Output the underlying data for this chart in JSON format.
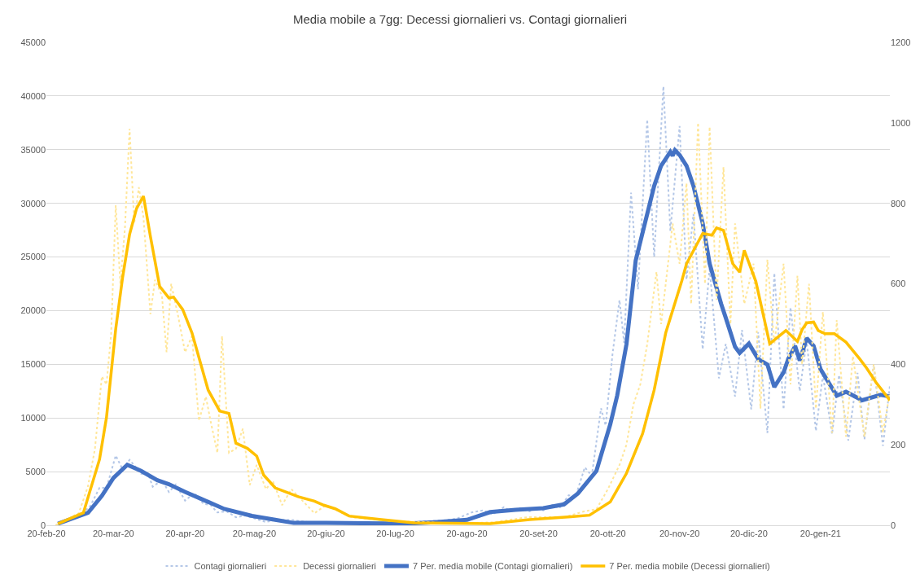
{
  "chart_data": {
    "type": "line",
    "title": "Media mobile a 7gg: Decessi giornalieri vs. Contagi giornalieri",
    "xlim": [
      "2020-02-20",
      "2021-02-19"
    ],
    "xticks": [
      {
        "value": "2020-02-20",
        "label": "20-feb-20"
      },
      {
        "value": "2020-03-20",
        "label": "20-mar-20"
      },
      {
        "value": "2020-04-20",
        "label": "20-apr-20"
      },
      {
        "value": "2020-05-20",
        "label": "20-mag-20"
      },
      {
        "value": "2020-06-20",
        "label": "20-giu-20"
      },
      {
        "value": "2020-07-20",
        "label": "20-lug-20"
      },
      {
        "value": "2020-08-20",
        "label": "20-ago-20"
      },
      {
        "value": "2020-09-20",
        "label": "20-set-20"
      },
      {
        "value": "2020-10-20",
        "label": "20-ott-20"
      },
      {
        "value": "2020-11-20",
        "label": "20-nov-20"
      },
      {
        "value": "2020-12-20",
        "label": "20-dic-20"
      },
      {
        "value": "2021-01-20",
        "label": "20-gen-21"
      }
    ],
    "ylim": [
      0,
      45000
    ],
    "yticks": [
      0,
      5000,
      10000,
      15000,
      20000,
      25000,
      30000,
      35000,
      40000,
      45000
    ],
    "y2lim": [
      0,
      1200
    ],
    "y2ticks": [
      0,
      200,
      400,
      600,
      800,
      1000,
      1200
    ],
    "grid": "y",
    "legend": "bottom",
    "marker": "none",
    "series": [
      {
        "name": "Contagi giornalieri",
        "color": "#b4c7e7",
        "line_style": "dotted",
        "x": [
          "2020-02-24",
          "2020-03-01",
          "2020-03-05",
          "2020-03-10",
          "2020-03-14",
          "2020-03-17",
          "2020-03-21",
          "2020-03-24",
          "2020-03-27",
          "2020-04-01",
          "2020-04-04",
          "2020-04-06",
          "2020-04-10",
          "2020-04-13",
          "2020-04-16",
          "2020-04-20",
          "2020-04-24",
          "2020-04-28",
          "2020-05-01",
          "2020-05-04",
          "2020-05-08",
          "2020-05-12",
          "2020-05-16",
          "2020-05-20",
          "2020-05-25",
          "2020-05-29",
          "2020-06-05",
          "2020-06-12",
          "2020-06-20",
          "2020-07-01",
          "2020-07-10",
          "2020-07-20",
          "2020-07-28",
          "2020-08-04",
          "2020-08-10",
          "2020-08-16",
          "2020-08-22",
          "2020-08-27",
          "2020-08-31",
          "2020-09-05",
          "2020-09-08",
          "2020-09-12",
          "2020-09-16",
          "2020-09-19",
          "2020-09-22",
          "2020-09-26",
          "2020-09-29",
          "2020-10-03",
          "2020-10-06",
          "2020-10-10",
          "2020-10-13",
          "2020-10-17",
          "2020-10-19",
          "2020-10-22",
          "2020-10-25",
          "2020-10-27",
          "2020-10-30",
          "2020-11-02",
          "2020-11-06",
          "2020-11-09",
          "2020-11-13",
          "2020-11-16",
          "2020-11-20",
          "2020-11-23",
          "2020-11-26",
          "2020-11-30",
          "2020-12-03",
          "2020-12-07",
          "2020-12-10",
          "2020-12-14",
          "2020-12-17",
          "2020-12-21",
          "2020-12-24",
          "2020-12-28",
          "2020-12-31",
          "2021-01-04",
          "2021-01-07",
          "2021-01-11",
          "2021-01-14",
          "2021-01-18",
          "2021-01-21",
          "2021-01-25",
          "2021-01-28",
          "2021-02-01",
          "2021-02-05",
          "2021-02-08",
          "2021-02-12",
          "2021-02-16",
          "2021-02-19"
        ],
        "values": [
          0,
          500,
          800,
          1800,
          3500,
          3500,
          6500,
          5200,
          6100,
          4800,
          4800,
          3600,
          4200,
          3100,
          3800,
          2300,
          3000,
          2000,
          1900,
          1200,
          1300,
          750,
          900,
          650,
          300,
          500,
          500,
          300,
          250,
          150,
          230,
          250,
          300,
          400,
          450,
          650,
          1200,
          1400,
          1000,
          1700,
          1300,
          1600,
          1300,
          1600,
          1400,
          1900,
          1600,
          2800,
          2700,
          5400,
          4600,
          10900,
          9300,
          16000,
          21000,
          17000,
          31000,
          22000,
          37800,
          25000,
          40900,
          27400,
          37200,
          22900,
          29000,
          16400,
          24000,
          13700,
          16900,
          12000,
          18200,
          10800,
          18000,
          8600,
          23500,
          10800,
          20300,
          12500,
          17200,
          8800,
          14000,
          8500,
          14000,
          7900,
          14200,
          8000,
          15000,
          7400,
          13000
        ]
      },
      {
        "name": "Decessi giornalieri",
        "color": "#ffe699",
        "line_style": "dotted",
        "axis": "y2",
        "x": [
          "2020-02-24",
          "2020-03-05",
          "2020-03-09",
          "2020-03-12",
          "2020-03-15",
          "2020-03-17",
          "2020-03-19",
          "2020-03-21",
          "2020-03-23",
          "2020-03-25",
          "2020-03-27",
          "2020-03-29",
          "2020-03-31",
          "2020-04-02",
          "2020-04-05",
          "2020-04-07",
          "2020-04-10",
          "2020-04-12",
          "2020-04-14",
          "2020-04-17",
          "2020-04-20",
          "2020-04-23",
          "2020-04-26",
          "2020-04-29",
          "2020-05-01",
          "2020-05-04",
          "2020-05-06",
          "2020-05-09",
          "2020-05-12",
          "2020-05-15",
          "2020-05-18",
          "2020-05-21",
          "2020-05-25",
          "2020-05-28",
          "2020-06-01",
          "2020-06-05",
          "2020-06-10",
          "2020-06-15",
          "2020-06-20",
          "2020-07-01",
          "2020-07-10",
          "2020-07-20",
          "2020-08-01",
          "2020-08-15",
          "2020-09-01",
          "2020-09-15",
          "2020-10-01",
          "2020-10-10",
          "2020-10-15",
          "2020-10-20",
          "2020-10-25",
          "2020-10-28",
          "2020-10-31",
          "2020-11-03",
          "2020-11-06",
          "2020-11-10",
          "2020-11-12",
          "2020-11-14",
          "2020-11-17",
          "2020-11-20",
          "2020-11-23",
          "2020-11-25",
          "2020-11-28",
          "2020-12-01",
          "2020-12-03",
          "2020-12-06",
          "2020-12-09",
          "2020-12-12",
          "2020-12-14",
          "2020-12-18",
          "2020-12-22",
          "2020-12-25",
          "2020-12-28",
          "2020-12-31",
          "2021-01-04",
          "2021-01-07",
          "2021-01-10",
          "2021-01-12",
          "2021-01-15",
          "2021-01-18",
          "2021-01-21",
          "2021-01-25",
          "2021-01-27",
          "2021-01-31",
          "2021-02-03",
          "2021-02-08",
          "2021-02-12",
          "2021-02-16",
          "2021-02-19"
        ],
        "values": [
          0,
          30,
          97,
          190,
          370,
          350,
          475,
          795,
          600,
          740,
          985,
          750,
          840,
          765,
          525,
          610,
          570,
          430,
          600,
          520,
          430,
          470,
          260,
          320,
          260,
          180,
          470,
          180,
          190,
          240,
          100,
          150,
          90,
          110,
          50,
          90,
          60,
          30,
          50,
          20,
          15,
          10,
          8,
          4,
          8,
          20,
          20,
          35,
          40,
          90,
          150,
          200,
          300,
          350,
          450,
          630,
          500,
          600,
          750,
          650,
          850,
          550,
          1000,
          600,
          990,
          560,
          890,
          500,
          750,
          550,
          650,
          290,
          660,
          450,
          650,
          350,
          620,
          400,
          600,
          290,
          530,
          230,
          510,
          220,
          420,
          220,
          400,
          230,
          330
        ]
      },
      {
        "name": "7 Per. media mobile (Contagi giornalieri)",
        "color": "#4472c4",
        "line_style": "solid",
        "x": [
          "2020-02-25",
          "2020-03-09",
          "2020-03-15",
          "2020-03-20",
          "2020-03-26",
          "2020-04-01",
          "2020-04-08",
          "2020-04-13",
          "2020-04-20",
          "2020-04-27",
          "2020-05-07",
          "2020-05-19",
          "2020-05-29",
          "2020-06-06",
          "2020-06-20",
          "2020-07-25",
          "2020-08-06",
          "2020-08-20",
          "2020-08-30",
          "2020-09-10",
          "2020-09-22",
          "2020-10-01",
          "2020-10-07",
          "2020-10-15",
          "2020-10-21",
          "2020-10-24",
          "2020-10-28",
          "2020-11-01",
          "2020-11-05",
          "2020-11-09",
          "2020-11-12",
          "2020-11-16",
          "2020-11-17",
          "2020-11-18",
          "2020-11-20",
          "2020-11-23",
          "2020-11-26",
          "2020-11-30",
          "2020-12-03",
          "2020-12-08",
          "2020-12-10",
          "2020-12-14",
          "2020-12-16",
          "2020-12-20",
          "2020-12-24",
          "2020-12-28",
          "2020-12-31",
          "2021-01-04",
          "2021-01-06",
          "2021-01-09",
          "2021-01-11",
          "2021-01-14",
          "2021-01-17",
          "2021-01-20",
          "2021-01-27",
          "2021-01-31",
          "2021-02-07",
          "2021-02-15",
          "2021-02-19"
        ],
        "values": [
          150,
          1160,
          2750,
          4410,
          5640,
          5060,
          4200,
          3830,
          3110,
          2460,
          1520,
          870,
          510,
          220,
          220,
          150,
          290,
          510,
          1230,
          1450,
          1590,
          1950,
          2970,
          5060,
          9410,
          12080,
          16860,
          24670,
          28140,
          31620,
          33500,
          34800,
          34440,
          34950,
          34510,
          33500,
          31620,
          28140,
          24380,
          20620,
          19320,
          16640,
          16060,
          16930,
          15480,
          14980,
          12880,
          14250,
          15480,
          16710,
          15340,
          17440,
          16710,
          14540,
          12080,
          12440,
          11650,
          12150,
          12010
        ]
      },
      {
        "name": "7 Per. media mobile (Decessi giornalieri)",
        "color": "#ffc000",
        "line_style": "solid",
        "axis": "y2",
        "x": [
          "2020-02-25",
          "2020-03-07",
          "2020-03-14",
          "2020-03-17",
          "2020-03-21",
          "2020-03-24",
          "2020-03-27",
          "2020-03-30",
          "2020-04-02",
          "2020-04-05",
          "2020-04-09",
          "2020-04-13",
          "2020-04-15",
          "2020-04-19",
          "2020-04-23",
          "2020-04-30",
          "2020-05-05",
          "2020-05-09",
          "2020-05-12",
          "2020-05-17",
          "2020-05-21",
          "2020-05-24",
          "2020-05-29",
          "2020-06-08",
          "2020-06-15",
          "2020-06-19",
          "2020-06-24",
          "2020-06-30",
          "2020-07-14",
          "2020-07-28",
          "2020-08-30",
          "2020-09-16",
          "2020-10-04",
          "2020-10-12",
          "2020-10-21",
          "2020-10-28",
          "2020-11-04",
          "2020-11-09",
          "2020-11-14",
          "2020-11-21",
          "2020-11-23",
          "2020-11-27",
          "2020-11-30",
          "2020-12-04",
          "2020-12-06",
          "2020-12-09",
          "2020-12-13",
          "2020-12-16",
          "2020-12-18",
          "2020-12-23",
          "2020-12-29",
          "2021-01-05",
          "2021-01-10",
          "2021-01-12",
          "2021-01-14",
          "2021-01-17",
          "2021-01-19",
          "2021-01-22",
          "2021-01-26",
          "2021-01-31",
          "2021-02-06",
          "2021-02-09",
          "2021-02-13",
          "2021-02-19"
        ],
        "values": [
          4,
          31,
          164,
          268,
          488,
          617,
          723,
          787,
          818,
          718,
          594,
          565,
          567,
          536,
          478,
          336,
          284,
          278,
          204,
          191,
          172,
          125,
          93,
          71,
          60,
          50,
          41,
          23,
          14,
          6,
          4,
          14,
          21,
          25,
          58,
          129,
          228,
          336,
          478,
          608,
          650,
          693,
          725,
          721,
          739,
          733,
          650,
          629,
          683,
          606,
          451,
          484,
          457,
          486,
          503,
          505,
          484,
          476,
          476,
          455,
          413,
          390,
          355,
          311
        ]
      }
    ]
  }
}
